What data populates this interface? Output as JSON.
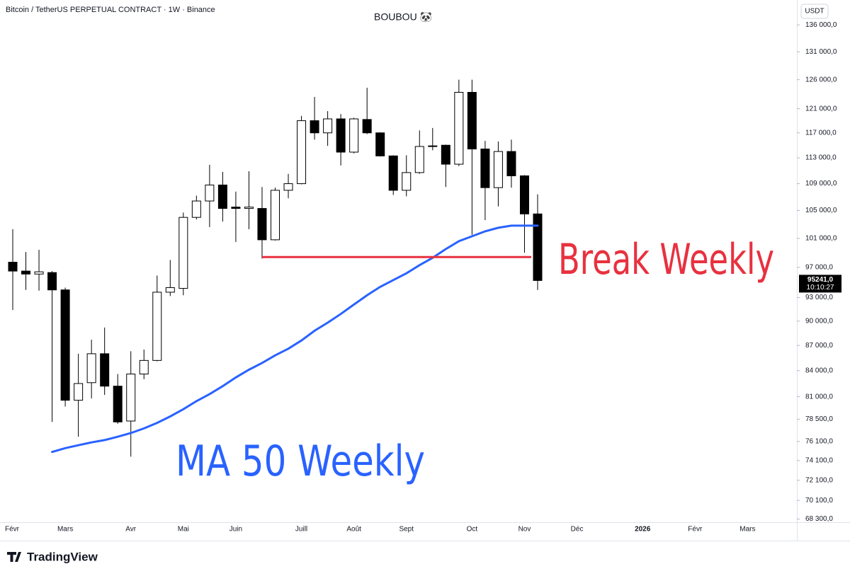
{
  "chart_data": {
    "type": "candlestick",
    "source": "Bitcoin / TetherUS PERPETUAL CONTRACT · 1W · Binance",
    "title": "BOUBOU 🐼",
    "currency": "USDT",
    "brand": "TradingView",
    "categories": [
      "Févr",
      null,
      null,
      null,
      "Mars",
      null,
      null,
      null,
      null,
      "Avr",
      null,
      null,
      null,
      "Mai",
      null,
      null,
      null,
      "Juin",
      null,
      null,
      null,
      null,
      "Juill",
      null,
      null,
      null,
      "Août",
      null,
      null,
      null,
      "Sept",
      null,
      null,
      null,
      null,
      "Oct",
      null,
      null,
      null,
      "Nov",
      null,
      null,
      null,
      "Déc",
      null,
      null,
      null,
      null,
      "2026",
      null,
      null,
      null,
      "Févr",
      null,
      null,
      null,
      "Mars",
      null,
      null,
      null
    ],
    "open": [
      97700,
      96500,
      96100,
      96300,
      94000,
      80600,
      82600,
      86000,
      82200,
      78300,
      83600,
      85200,
      93700,
      94200,
      104000,
      106400,
      108800,
      105500,
      105300,
      105300,
      100800,
      108000,
      109000,
      119000,
      117000,
      119300,
      113900,
      119200,
      117000,
      113300,
      108000,
      110700,
      114800,
      115000,
      112000,
      123800,
      114400,
      108400,
      114000,
      110200,
      104500,
      null,
      null,
      null,
      null,
      null,
      null,
      null,
      null,
      null,
      null,
      null,
      null,
      null,
      null,
      null,
      null,
      null,
      null,
      null
    ],
    "high": [
      102300,
      99100,
      99400,
      96500,
      94300,
      86000,
      87700,
      89200,
      83600,
      86300,
      86500,
      95900,
      98000,
      104700,
      107200,
      111900,
      110800,
      107800,
      110900,
      108500,
      108400,
      110500,
      119800,
      123000,
      120600,
      120100,
      119500,
      124600,
      117100,
      113400,
      113400,
      117400,
      117800,
      115100,
      126000,
      126000,
      115700,
      115600,
      115900,
      110300,
      107400,
      null,
      null,
      null,
      null,
      null,
      null,
      null,
      null,
      null,
      null,
      null,
      null,
      null,
      null,
      null,
      null,
      null,
      null,
      null
    ],
    "low": [
      91400,
      94000,
      93900,
      78200,
      79900,
      76600,
      80800,
      81200,
      78000,
      74500,
      83000,
      85100,
      93200,
      93300,
      103700,
      102600,
      103400,
      100500,
      102300,
      98200,
      100700,
      106800,
      108900,
      115900,
      114900,
      111800,
      113700,
      116800,
      113200,
      107300,
      107100,
      110500,
      114200,
      108500,
      111700,
      101500,
      103600,
      105600,
      108400,
      99000,
      94000,
      null,
      null,
      null,
      null,
      null,
      null,
      null,
      null,
      null,
      null,
      null,
      null,
      null,
      null,
      null,
      null,
      null,
      null,
      null
    ],
    "close": [
      96500,
      96100,
      96400,
      94000,
      80600,
      82500,
      86000,
      82200,
      78200,
      83600,
      85200,
      93700,
      94300,
      104000,
      106400,
      108800,
      105300,
      105300,
      105500,
      100800,
      108000,
      109000,
      119000,
      117000,
      119300,
      113900,
      119300,
      117000,
      113300,
      108000,
      110700,
      114800,
      114900,
      112000,
      123800,
      114400,
      108400,
      114000,
      110200,
      104500,
      95241,
      null,
      null,
      null,
      null,
      null,
      null,
      null,
      null,
      null,
      null,
      null,
      null,
      null,
      null,
      null,
      null,
      null,
      null,
      null
    ],
    "up_color": "#ffffff",
    "down_color": "#000000",
    "outline_color": "#000000",
    "ma": {
      "color": "#2962ff",
      "values": [
        null,
        null,
        null,
        75000,
        75400,
        75700,
        76000,
        76250,
        76600,
        77000,
        77500,
        78100,
        78800,
        79600,
        80500,
        81300,
        82200,
        83200,
        84100,
        84900,
        85800,
        86600,
        87600,
        88800,
        89800,
        90900,
        92100,
        93300,
        94400,
        95300,
        96200,
        97300,
        98300,
        99500,
        100600,
        101300,
        102000,
        102500,
        102800,
        102800,
        102800,
        null,
        null,
        null,
        null,
        null,
        null,
        null,
        null,
        null,
        null,
        null,
        null,
        null,
        null,
        null,
        null,
        null,
        null,
        null
      ]
    },
    "break_level": 98400,
    "break_color": "#e8313f",
    "annotations": [
      {
        "text": "MA 50 Weekly",
        "color": "#2962ff"
      },
      {
        "text": "Break Weekly",
        "color": "#e8313f"
      }
    ],
    "last_price": {
      "value": 95241,
      "label": "95241,0"
    },
    "countdown": "10:10:27",
    "log_scale": true,
    "grid": false,
    "ylim": [
      68000,
      140800
    ],
    "yticks": [
      {
        "value": 136000,
        "label": "136 000,0"
      },
      {
        "value": 131000,
        "label": "131 000,0"
      },
      {
        "value": 126000,
        "label": "126 000,0"
      },
      {
        "value": 121000,
        "label": "121 000,0"
      },
      {
        "value": 117000,
        "label": "117 000,0"
      },
      {
        "value": 113000,
        "label": "113 000,0"
      },
      {
        "value": 109000,
        "label": "109 000,0"
      },
      {
        "value": 105000,
        "label": "105 000,0"
      },
      {
        "value": 101000,
        "label": "101 000,0"
      },
      {
        "value": 97000,
        "label": "97 000,0"
      },
      {
        "value": 93000,
        "label": "93 000,0"
      },
      {
        "value": 90000,
        "label": "90 000,0"
      },
      {
        "value": 87000,
        "label": "87 000,0"
      },
      {
        "value": 84000,
        "label": "84 000,0"
      },
      {
        "value": 81000,
        "label": "81 000,0"
      },
      {
        "value": 78500,
        "label": "78 500,0"
      },
      {
        "value": 76100,
        "label": "76 100,0"
      },
      {
        "value": 74100,
        "label": "74 100,0"
      },
      {
        "value": 72100,
        "label": "72 100,0"
      },
      {
        "value": 70100,
        "label": "70 100,0"
      },
      {
        "value": 68300,
        "label": "68 300,0"
      }
    ]
  }
}
